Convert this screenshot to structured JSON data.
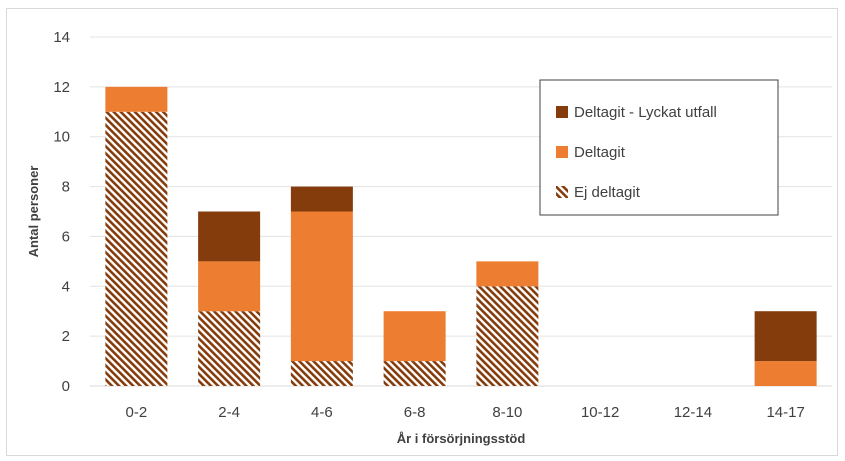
{
  "chart_data": {
    "type": "bar",
    "stacked": true,
    "categories": [
      "0-2",
      "2-4",
      "4-6",
      "6-8",
      "8-10",
      "10-12",
      "12-14",
      "14-17"
    ],
    "series": [
      {
        "name": "Ej deltagit",
        "values": [
          11,
          3,
          1,
          1,
          4,
          0,
          0,
          0
        ],
        "color": "#843c0c",
        "pattern": "diagonal-hatch"
      },
      {
        "name": "Deltagit",
        "values": [
          1,
          2,
          6,
          2,
          1,
          0,
          0,
          1
        ],
        "color": "#ed7d31"
      },
      {
        "name": "Deltagit - Lyckat utfall",
        "values": [
          0,
          2,
          1,
          0,
          0,
          0,
          0,
          2
        ],
        "color": "#843c0c"
      }
    ],
    "legend_order": [
      "Deltagit - Lyckat utfall",
      "Deltagit",
      "Ej deltagit"
    ],
    "xlabel": "År i försörjningsstöd",
    "ylabel": "Antal personer",
    "ylim": [
      0,
      14
    ],
    "yticks": [
      0,
      2,
      4,
      6,
      8,
      10,
      12,
      14
    ],
    "grid": true,
    "legend_position": "top-right"
  }
}
